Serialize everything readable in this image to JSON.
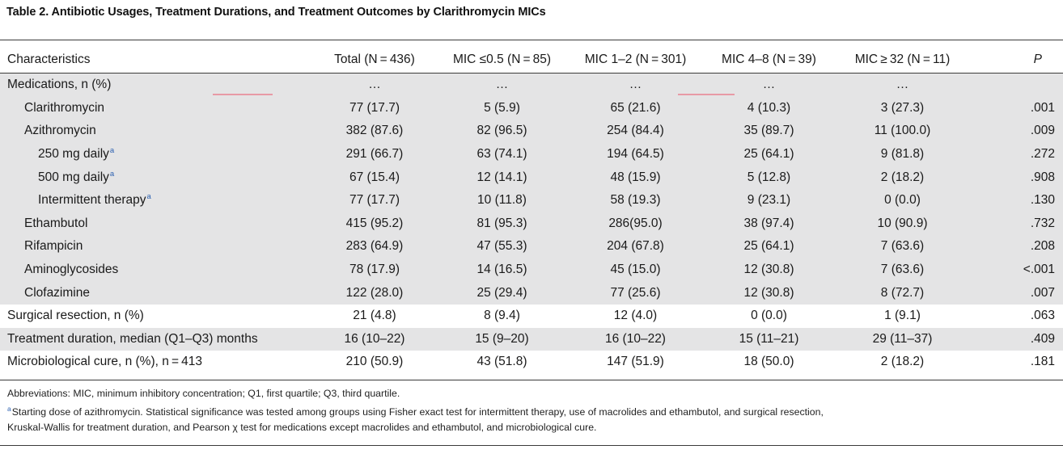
{
  "caption": "Table 2.   Antibiotic Usages, Treatment Durations, and Treatment Outcomes by Clarithromycin MICs",
  "headers": [
    "Characteristics",
    "Total (N = 436)",
    "MIC ≤0.5 (N = 85)",
    "MIC 1–2 (N = 301)",
    "MIC 4–8 (N = 39)",
    "MIC ≥ 32 (N = 11)",
    "P"
  ],
  "rows": [
    {
      "label": "Medications, n (%)",
      "cells": [
        "…",
        "…",
        "…",
        "…",
        "…",
        ""
      ]
    },
    {
      "label": "Clarithromycin",
      "cells": [
        "77 (17.7)",
        "5 (5.9)",
        "65 (21.6)",
        "4 (10.3)",
        "3 (27.3)",
        ".001"
      ]
    },
    {
      "label": "Azithromycin",
      "cells": [
        "382 (87.6)",
        "82 (96.5)",
        "254 (84.4)",
        "35 (89.7)",
        "11 (100.0)",
        ".009"
      ]
    },
    {
      "label": "250 mg daily",
      "sup": "a",
      "cells": [
        "291 (66.7)",
        "63 (74.1)",
        "194 (64.5)",
        "25 (64.1)",
        "9 (81.8)",
        ".272"
      ]
    },
    {
      "label": "500 mg daily",
      "sup": "a",
      "cells": [
        "67 (15.4)",
        "12 (14.1)",
        "48 (15.9)",
        "5 (12.8)",
        "2 (18.2)",
        ".908"
      ]
    },
    {
      "label": "Intermittent therapy",
      "sup": "a",
      "cells": [
        "77 (17.7)",
        "10 (11.8)",
        "58 (19.3)",
        "9 (23.1)",
        "0 (0.0)",
        ".130"
      ]
    },
    {
      "label": "Ethambutol",
      "cells": [
        "415 (95.2)",
        "81 (95.3)",
        "286(95.0)",
        "38 (97.4)",
        "10 (90.9)",
        ".732"
      ]
    },
    {
      "label": "Rifampicin",
      "cells": [
        "283 (64.9)",
        "47 (55.3)",
        "204 (67.8)",
        "25 (64.1)",
        "7 (63.6)",
        ".208"
      ]
    },
    {
      "label": "Aminoglycosides",
      "cells": [
        "78 (17.9)",
        "14 (16.5)",
        "45 (15.0)",
        "12 (30.8)",
        "7 (63.6)",
        "<.001"
      ]
    },
    {
      "label": "Clofazimine",
      "cells": [
        "122 (28.0)",
        "25 (29.4)",
        "77 (25.6)",
        "12 (30.8)",
        "8 (72.7)",
        ".007"
      ]
    },
    {
      "label": "Surgical resection, n (%)",
      "cells": [
        "21 (4.8)",
        "8 (9.4)",
        "12 (4.0)",
        "0 (0.0)",
        "1 (9.1)",
        ".063"
      ]
    },
    {
      "label": "Treatment duration, median (Q1–Q3) months",
      "cells": [
        "16 (10–22)",
        "15 (9–20)",
        "16 (10–22)",
        "15 (11–21)",
        "29 (11–37)",
        ".409"
      ]
    },
    {
      "label": "Microbiological cure, n (%), n = 413",
      "cells": [
        "210 (50.9)",
        "43 (51.8)",
        "147 (51.9)",
        "18 (50.0)",
        "2 (18.2)",
        ".181"
      ]
    }
  ],
  "footnotes": {
    "abbreviations": "Abbreviations: MIC, minimum inhibitory concentration; Q1, first quartile; Q3, third quartile.",
    "a_marker": "a",
    "a_line1": "Starting dose of azithromycin. Statistical significance was tested among groups using Fisher exact test for intermittent therapy, use of macrolides and ethambutol, and surgical resection,",
    "a_line2": "Kruskal-Wallis for treatment duration, and Pearson χ test for medications except macrolides and ethambutol, and microbiological cure."
  },
  "colors": {
    "shade": "#e4e4e5",
    "sup_link": "#2a5fb0",
    "highlight_mark": "#e89aa6"
  }
}
